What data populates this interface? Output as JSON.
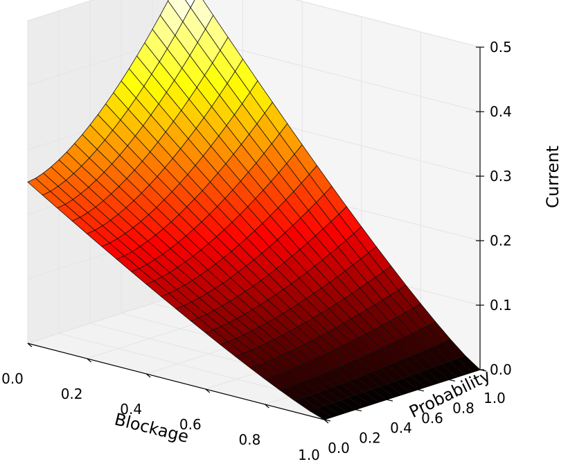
{
  "chart_data": {
    "type": "surface3d",
    "title": "",
    "xlabel": "Blockage",
    "ylabel": "Probability",
    "zlabel": "Current",
    "xlim": [
      0.0,
      1.0
    ],
    "ylim": [
      0.0,
      1.0
    ],
    "zlim": [
      0.0,
      0.5
    ],
    "x_ticks": [
      "0.0",
      "0.2",
      "0.4",
      "0.6",
      "0.8",
      "1.0"
    ],
    "y_ticks": [
      "0.0",
      "0.2",
      "0.4",
      "0.6",
      "0.8",
      "1.0"
    ],
    "z_ticks": [
      "0.0",
      "0.1",
      "0.2",
      "0.3",
      "0.4",
      "0.5"
    ],
    "grid": true,
    "colormap": "hot",
    "grid_resolution": 21,
    "x": [
      0.0,
      0.05,
      0.1,
      0.15,
      0.2,
      0.25,
      0.3,
      0.35,
      0.4,
      0.45,
      0.5,
      0.55,
      0.6,
      0.65,
      0.7,
      0.75,
      0.8,
      0.85,
      0.9,
      0.95,
      1.0
    ],
    "y": [
      0.0,
      0.05,
      0.1,
      0.15,
      0.2,
      0.25,
      0.3,
      0.35,
      0.4,
      0.45,
      0.5,
      0.55,
      0.6,
      0.65,
      0.7,
      0.75,
      0.8,
      0.85,
      0.9,
      0.95,
      1.0
    ],
    "z_corners": {
      "blockage_0_probability_0": 0.25,
      "blockage_0_probability_1": 0.5,
      "blockage_1_probability_0": 0.0,
      "blockage_1_probability_1": 0.0
    }
  }
}
